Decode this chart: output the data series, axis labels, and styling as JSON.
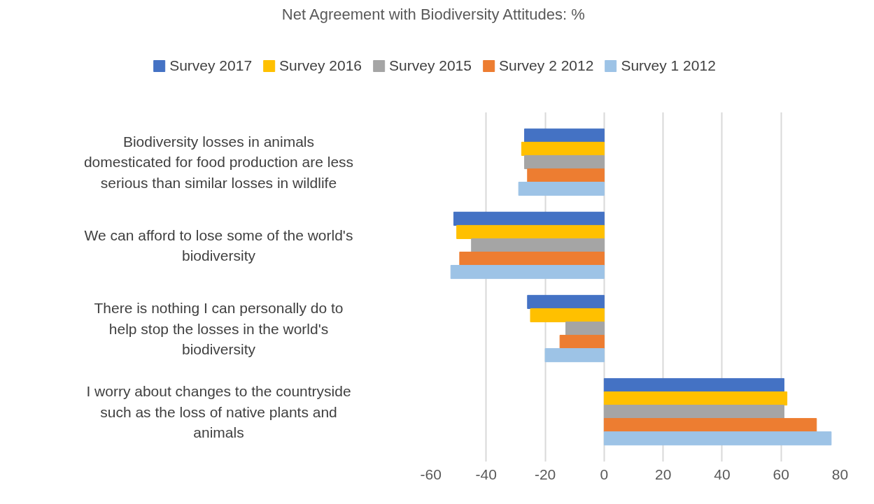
{
  "chart_data": {
    "type": "bar",
    "orientation": "horizontal",
    "title": "Net Agreement with Biodiversity Attitudes: %",
    "categories": [
      "Biodiversity losses in animals domesticated for food production are less serious than similar losses in wildlife",
      "We can afford to lose some of the world's biodiversity",
      "There is nothing I can personally do to help stop the losses in the world's biodiversity",
      "I worry about changes to the countryside such as the loss of native plants and animals"
    ],
    "series": [
      {
        "name": "Survey 2017",
        "color": "#4472c4",
        "values": [
          -27,
          -51,
          -26,
          61
        ]
      },
      {
        "name": "Survey 2016",
        "color": "#ffc000",
        "values": [
          -28,
          -50,
          -25,
          62
        ]
      },
      {
        "name": "Survey 2015",
        "color": "#a5a5a5",
        "values": [
          -27,
          -45,
          -13,
          61
        ]
      },
      {
        "name": "Survey 2 2012",
        "color": "#ed7d31",
        "values": [
          -26,
          -49,
          -15,
          72
        ]
      },
      {
        "name": "Survey 1 2012",
        "color": "#9dc3e6",
        "values": [
          -29,
          -52,
          -20,
          77
        ]
      }
    ],
    "xlim": [
      -60,
      80
    ],
    "xticks": [
      -60,
      -40,
      -20,
      0,
      20,
      40,
      60,
      80
    ],
    "grid": "x",
    "legend": "top"
  }
}
